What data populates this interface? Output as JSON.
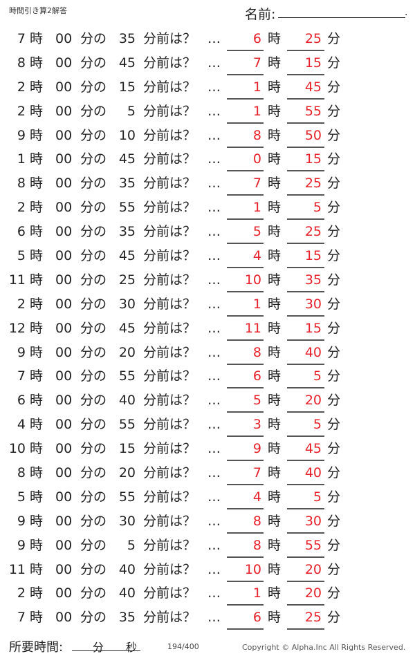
{
  "header": {
    "title": "時間引き算2解答",
    "name_label": "名前:",
    "name_end": "."
  },
  "labels": {
    "hour": "時",
    "zero_min": "00",
    "min_no": "分の",
    "min_before": "分前は？",
    "ellipsis": "…",
    "min": "分"
  },
  "rows": [
    {
      "h": "7",
      "m": "35",
      "ah": "6",
      "am": "25"
    },
    {
      "h": "8",
      "m": "45",
      "ah": "7",
      "am": "15"
    },
    {
      "h": "2",
      "m": "15",
      "ah": "1",
      "am": "45"
    },
    {
      "h": "2",
      "m": "5",
      "ah": "1",
      "am": "55"
    },
    {
      "h": "9",
      "m": "10",
      "ah": "8",
      "am": "50"
    },
    {
      "h": "1",
      "m": "45",
      "ah": "0",
      "am": "15"
    },
    {
      "h": "8",
      "m": "35",
      "ah": "7",
      "am": "25"
    },
    {
      "h": "2",
      "m": "55",
      "ah": "1",
      "am": "5"
    },
    {
      "h": "6",
      "m": "35",
      "ah": "5",
      "am": "25"
    },
    {
      "h": "5",
      "m": "45",
      "ah": "4",
      "am": "15"
    },
    {
      "h": "11",
      "m": "25",
      "ah": "10",
      "am": "35"
    },
    {
      "h": "2",
      "m": "30",
      "ah": "1",
      "am": "30"
    },
    {
      "h": "12",
      "m": "45",
      "ah": "11",
      "am": "15"
    },
    {
      "h": "9",
      "m": "20",
      "ah": "8",
      "am": "40"
    },
    {
      "h": "7",
      "m": "55",
      "ah": "6",
      "am": "5"
    },
    {
      "h": "6",
      "m": "40",
      "ah": "5",
      "am": "20"
    },
    {
      "h": "4",
      "m": "55",
      "ah": "3",
      "am": "5"
    },
    {
      "h": "10",
      "m": "15",
      "ah": "9",
      "am": "45"
    },
    {
      "h": "8",
      "m": "20",
      "ah": "7",
      "am": "40"
    },
    {
      "h": "5",
      "m": "55",
      "ah": "4",
      "am": "5"
    },
    {
      "h": "9",
      "m": "30",
      "ah": "8",
      "am": "30"
    },
    {
      "h": "9",
      "m": "5",
      "ah": "8",
      "am": "55"
    },
    {
      "h": "11",
      "m": "40",
      "ah": "10",
      "am": "20"
    },
    {
      "h": "2",
      "m": "40",
      "ah": "1",
      "am": "20"
    },
    {
      "h": "7",
      "m": "35",
      "ah": "6",
      "am": "25"
    }
  ],
  "footer": {
    "time_label": "所要時間:",
    "min": "分",
    "sec": "秒",
    "page": "194/400",
    "copyright": "Copyright ©  Alpha.Inc All Rights Reserved."
  },
  "colors": {
    "answer": "#e8202a"
  }
}
